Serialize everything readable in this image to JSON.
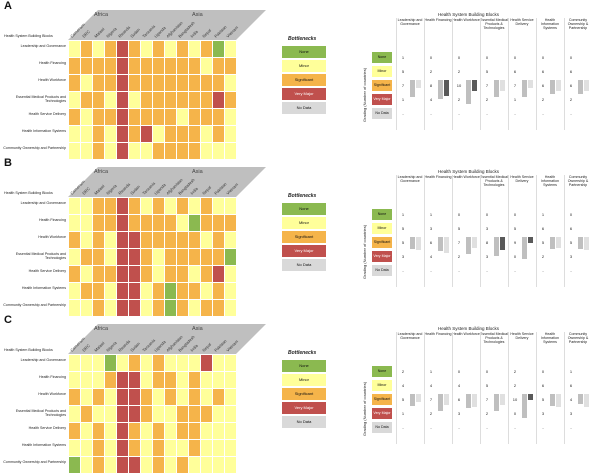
{
  "colors": {
    "None": "#8bb950",
    "Minor": "#ffff9a",
    "Significant": "#f5b44a",
    "Very Major": "#c0504d",
    "No Data": "#d9d9d9",
    "header_band": "#bfbfbf"
  },
  "countries": [
    "Cameroon",
    "DRC",
    "Malawi",
    "Nigeria",
    "Rwanda",
    "Sudan",
    "Tanzania",
    "Uganda",
    "Afghanistan",
    "Bangladesh",
    "India",
    "Nepal",
    "Pakistan",
    "Vietnam"
  ],
  "regions": {
    "africa": "Africa",
    "asia": "Asia"
  },
  "row_header": "Health System Building Blocks",
  "blocks": [
    "Leadership and Governance",
    "Health Financing",
    "Health Workforce",
    "Essential Medical Products and Technologies",
    "Health Service Delivery",
    "Health Information Systems",
    "Community Ownership and Partnership"
  ],
  "legend_title": "Bottlenecks",
  "legend": [
    "None",
    "Minor",
    "Significant",
    "Very Major",
    "No Data"
  ],
  "right_title": "Health System Building Blocks",
  "right_cols": [
    "Leadership and Governance",
    "Health Financing",
    "Health Workforce",
    "Essential Medical Products & Technologies",
    "Health Service Delivery",
    "Health Information Systems",
    "Community Ownership & Partnership"
  ],
  "right_ylabel": "Grading (Number of countries)",
  "chart_data": [
    {
      "type": "heatmap",
      "label": "A",
      "rows": [
        [
          "Minor",
          "Significant",
          "Minor",
          "Significant",
          "Very Major",
          "Significant",
          "Minor",
          "Significant",
          "Minor",
          "Significant",
          "Minor",
          "Significant",
          "None",
          "Minor"
        ],
        [
          "Significant",
          "Significant",
          "Significant",
          "Significant",
          "Very Major",
          "Significant",
          "Significant",
          "Significant",
          "Significant",
          "Significant",
          "Significant",
          "Minor",
          "Significant",
          "Significant"
        ],
        [
          "Significant",
          "Minor",
          "Significant",
          "Significant",
          "Very Major",
          "Significant",
          "Significant",
          "Significant",
          "Significant",
          "Significant",
          "Significant",
          "Significant",
          "Significant",
          "Minor"
        ],
        [
          "Minor",
          "Significant",
          "Significant",
          "Minor",
          "Very Major",
          "Minor",
          "Significant",
          "Significant",
          "Significant",
          "Significant",
          "Significant",
          "Significant",
          "Very Major",
          "Significant"
        ],
        [
          "Significant",
          "Minor",
          "Significant",
          "Significant",
          "Very Major",
          "Significant",
          "Significant",
          "Significant",
          "Significant",
          "Minor",
          "Significant",
          "Significant",
          "Significant",
          "Minor"
        ],
        [
          "Minor",
          "Minor",
          "Significant",
          "Minor",
          "Very Major",
          "Significant",
          "Very Major",
          "Minor",
          "Significant",
          "Significant",
          "Significant",
          "Minor",
          "Significant",
          "Minor"
        ],
        [
          "Minor",
          "Minor",
          "Significant",
          "Minor",
          "Very Major",
          "Minor",
          "Minor",
          "Significant",
          "Significant",
          "Significant",
          "Significant",
          "Minor",
          "Minor",
          "Minor"
        ]
      ],
      "counts": [
        {
          "None": 1,
          "Minor": 5,
          "Significant": 7,
          "Very Major": 1,
          "No Data": "-"
        },
        {
          "None": 0,
          "Minor": 2,
          "Significant": 8,
          "Very Major": 4,
          "No Data": "-"
        },
        {
          "None": 0,
          "Minor": 2,
          "Significant": 10,
          "Very Major": 2,
          "No Data": "-"
        },
        {
          "None": 0,
          "Minor": 5,
          "Significant": 7,
          "Very Major": 2,
          "No Data": "-"
        },
        {
          "None": 0,
          "Minor": 6,
          "Significant": 7,
          "Very Major": 1,
          "No Data": "-"
        },
        {
          "None": 0,
          "Minor": 6,
          "Significant": 6,
          "Very Major": 2,
          "No Data": "-"
        },
        {
          "None": 0,
          "Minor": 6,
          "Significant": 6,
          "Very Major": 2,
          "No Data": "-"
        }
      ]
    },
    {
      "type": "heatmap",
      "label": "B",
      "rows": [
        [
          "Minor",
          "Minor",
          "Significant",
          "Significant",
          "Very Major",
          "Significant",
          "Minor",
          "Significant",
          "Minor",
          "Significant",
          "Minor",
          "Significant",
          "Minor",
          "Minor"
        ],
        [
          "Minor",
          "Minor",
          "Significant",
          "Significant",
          "Very Major",
          "Significant",
          "Significant",
          "Significant",
          "Significant",
          "Minor",
          "None",
          "Significant",
          "Significant",
          "Significant"
        ],
        [
          "Significant",
          "Minor",
          "Significant",
          "Minor",
          "Very Major",
          "Very Major",
          "Significant",
          "Significant",
          "Significant",
          "Significant",
          "Significant",
          "Minor",
          "Significant",
          "Minor"
        ],
        [
          "Minor",
          "Significant",
          "Significant",
          "Minor",
          "Very Major",
          "Very Major",
          "Significant",
          "Minor",
          "Significant",
          "Significant",
          "Significant",
          "Significant",
          "Significant",
          "None"
        ],
        [
          "Significant",
          "Minor",
          "Significant",
          "Significant",
          "Very Major",
          "Very Major",
          "Significant",
          "Minor",
          "Significant",
          "Significant",
          "Minor",
          "Significant",
          "Very Major",
          "Minor"
        ],
        [
          "Minor",
          "Significant",
          "Significant",
          "Minor",
          "Very Major",
          "Very Major",
          "Minor",
          "Significant",
          "None",
          "Significant",
          "Significant",
          "Minor",
          "Significant",
          "Minor"
        ],
        [
          "Minor",
          "Minor",
          "Significant",
          "Minor",
          "Very Major",
          "Very Major",
          "Minor",
          "Significant",
          "None",
          "Significant",
          "Minor",
          "Significant",
          "Significant",
          "Minor"
        ]
      ],
      "counts": [
        {
          "None": 1,
          "Minor": 5,
          "Significant": 5,
          "Very Major": 3,
          "No Data": "-"
        },
        {
          "None": 1,
          "Minor": 3,
          "Significant": 6,
          "Very Major": 4,
          "No Data": "-"
        },
        {
          "None": 0,
          "Minor": 5,
          "Significant": 7,
          "Very Major": 2,
          "No Data": "-"
        },
        {
          "None": 0,
          "Minor": 3,
          "Significant": 8,
          "Very Major": 3,
          "No Data": "-"
        },
        {
          "None": 0,
          "Minor": 5,
          "Significant": 9,
          "Very Major": 0,
          "No Data": "-"
        },
        {
          "None": 1,
          "Minor": 6,
          "Significant": 5,
          "Very Major": 2,
          "No Data": "-"
        },
        {
          "None": 0,
          "Minor": 6,
          "Significant": 5,
          "Very Major": 3,
          "No Data": "-"
        }
      ]
    },
    {
      "type": "heatmap",
      "label": "C",
      "rows": [
        [
          "Minor",
          "Minor",
          "Minor",
          "None",
          "Minor",
          "Significant",
          "Minor",
          "Significant",
          "Minor",
          "Minor",
          "Minor",
          "Very Major",
          "Minor",
          "Minor"
        ],
        [
          "Minor",
          "Minor",
          "Minor",
          "Significant",
          "Very Major",
          "Very Major",
          "Minor",
          "Significant",
          "Significant",
          "Minor",
          "Significant",
          "Minor",
          "Minor",
          "Minor"
        ],
        [
          "Significant",
          "Minor",
          "Significant",
          "Minor",
          "Very Major",
          "Very Major",
          "Significant",
          "Minor",
          "Significant",
          "Minor",
          "Significant",
          "Minor",
          "Significant",
          "Minor"
        ],
        [
          "Minor",
          "Significant",
          "Minor",
          "Minor",
          "Very Major",
          "Very Major",
          "Significant",
          "Minor",
          "Minor",
          "Significant",
          "Significant",
          "Significant",
          "Minor",
          "Minor"
        ],
        [
          "Significant",
          "Minor",
          "Significant",
          "Minor",
          "Very Major",
          "Significant",
          "Minor",
          "Significant",
          "Minor",
          "Significant",
          "Significant",
          "Minor",
          "Minor",
          "Minor"
        ],
        [
          "Minor",
          "Minor",
          "Significant",
          "Minor",
          "Very Major",
          "Significant",
          "Minor",
          "Significant",
          "Minor",
          "Minor",
          "Significant",
          "Minor",
          "Minor",
          "Minor"
        ],
        [
          "None",
          "Minor",
          "Significant",
          "Minor",
          "Very Major",
          "Very Major",
          "Minor",
          "Significant",
          "Minor",
          "Significant",
          "Minor",
          "Minor",
          "Minor",
          "Minor"
        ]
      ],
      "counts": [
        {
          "None": 2,
          "Minor": 4,
          "Significant": 5,
          "Very Major": 1,
          "No Data": "-"
        },
        {
          "None": 1,
          "Minor": 4,
          "Significant": 7,
          "Very Major": 2,
          "No Data": "-"
        },
        {
          "None": 0,
          "Minor": 4,
          "Significant": 6,
          "Very Major": 3,
          "No Data": "-"
        },
        {
          "None": 0,
          "Minor": 5,
          "Significant": 7,
          "Very Major": 2,
          "No Data": "-"
        },
        {
          "None": 2,
          "Minor": 2,
          "Significant": 10,
          "Very Major": 0,
          "No Data": "-"
        },
        {
          "None": 0,
          "Minor": 6,
          "Significant": 5,
          "Very Major": 3,
          "No Data": "-"
        },
        {
          "None": 1,
          "Minor": 6,
          "Significant": 4,
          "Very Major": 3,
          "No Data": "-"
        }
      ]
    }
  ]
}
